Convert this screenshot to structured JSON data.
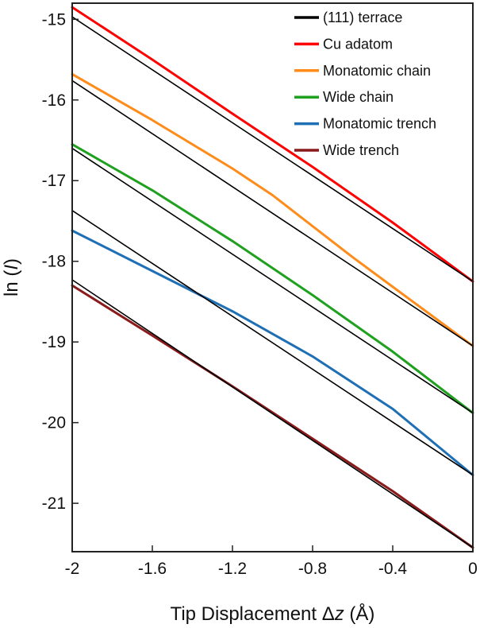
{
  "chart_data": {
    "type": "line",
    "xlabel": {
      "prefix": "Tip Displacement Δ",
      "italic": "z",
      "suffix": " (Å)"
    },
    "ylabel": {
      "prefix": "ln (",
      "italic": "I",
      "suffix": ")"
    },
    "xlim": [
      -2,
      0
    ],
    "ylim": [
      -21.6,
      -14.8
    ],
    "xticks": [
      -2,
      -1.6,
      -1.2,
      -0.8,
      -0.4,
      0
    ],
    "xtick_labels": [
      "-2",
      "-1.6",
      "-1.2",
      "-0.8",
      "-0.4",
      "0"
    ],
    "yticks": [
      -15,
      -16,
      -17,
      -18,
      -19,
      -20,
      -21
    ],
    "ytick_labels": [
      "-15",
      "-16",
      "-17",
      "-18",
      "-19",
      "-20",
      "-21"
    ],
    "legend_position": "top-right",
    "grid": false,
    "series": [
      {
        "name": "(111) terrace",
        "color": "#000000",
        "legend": true,
        "values": [
          [
            -2,
            -14.97
          ],
          [
            0,
            -18.25
          ]
        ]
      },
      {
        "name": "Cu adatom",
        "color": "#ff0000",
        "legend": true,
        "values": [
          [
            -2,
            -14.85
          ],
          [
            -1.6,
            -15.5
          ],
          [
            -1.2,
            -16.17
          ],
          [
            -0.8,
            -16.83
          ],
          [
            -0.4,
            -17.52
          ],
          [
            0,
            -18.25
          ]
        ]
      },
      {
        "name": "Monatomic chain",
        "color": "#ff8c1a",
        "legend": true,
        "values": [
          [
            -2,
            -15.68
          ],
          [
            -1.6,
            -16.25
          ],
          [
            -1.2,
            -16.85
          ],
          [
            -1.0,
            -17.18
          ],
          [
            -0.6,
            -17.95
          ],
          [
            -0.3,
            -18.5
          ],
          [
            0,
            -19.05
          ]
        ]
      },
      {
        "name": "Wide chain",
        "color": "#1fa01f",
        "legend": true,
        "values": [
          [
            -2,
            -16.55
          ],
          [
            -1.6,
            -17.12
          ],
          [
            -1.2,
            -17.75
          ],
          [
            -0.8,
            -18.42
          ],
          [
            -0.4,
            -19.12
          ],
          [
            0,
            -19.88
          ]
        ]
      },
      {
        "name": "Monatomic trench",
        "color": "#1f6fb5",
        "legend": true,
        "values": [
          [
            -2,
            -17.62
          ],
          [
            -1.6,
            -18.12
          ],
          [
            -1.2,
            -18.62
          ],
          [
            -0.8,
            -19.18
          ],
          [
            -0.4,
            -19.83
          ],
          [
            0,
            -20.65
          ]
        ]
      },
      {
        "name": "Wide trench",
        "color": "#8b1a1a",
        "legend": true,
        "values": [
          [
            -2,
            -18.3
          ],
          [
            -1.6,
            -18.92
          ],
          [
            -1.2,
            -19.55
          ],
          [
            -0.8,
            -20.2
          ],
          [
            -0.4,
            -20.85
          ],
          [
            0,
            -21.55
          ]
        ]
      },
      {
        "name": "",
        "color": "#000000",
        "legend": false,
        "values": [
          [
            -2,
            -15.76
          ],
          [
            0,
            -19.05
          ]
        ]
      },
      {
        "name": "",
        "color": "#000000",
        "legend": false,
        "values": [
          [
            -2,
            -16.6
          ],
          [
            0,
            -19.88
          ]
        ]
      },
      {
        "name": "",
        "color": "#000000",
        "legend": false,
        "values": [
          [
            -2,
            -17.37
          ],
          [
            0,
            -20.65
          ]
        ]
      },
      {
        "name": "",
        "color": "#000000",
        "legend": false,
        "values": [
          [
            -2,
            -18.23
          ],
          [
            0,
            -21.55
          ]
        ]
      }
    ]
  }
}
